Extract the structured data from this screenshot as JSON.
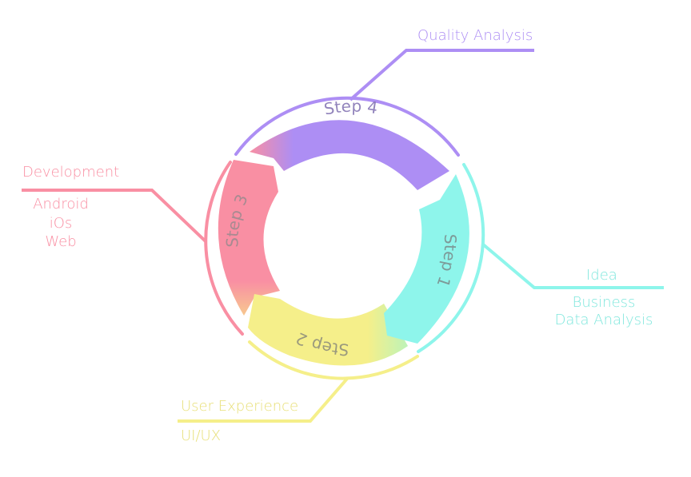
{
  "colors": {
    "step1": "#8ef5eb",
    "step2": "#f5ef8a",
    "step3": "#f98fa3",
    "step4": "#ad8ef4",
    "step_text": "#8a8a8a"
  },
  "steps": {
    "step1": "Step 1",
    "step2": "Step 2",
    "step3": "Step 3",
    "step4": "Step 4"
  },
  "callouts": {
    "quality": {
      "title": "Quality Analysis"
    },
    "development": {
      "title": "Development",
      "items": [
        "Android",
        "iOs",
        "Web"
      ]
    },
    "idea": {
      "title": "Idea",
      "items": [
        "Business",
        "Data Analysis"
      ]
    },
    "ux": {
      "title": "User Experience",
      "items": [
        "UI/UX"
      ]
    }
  }
}
